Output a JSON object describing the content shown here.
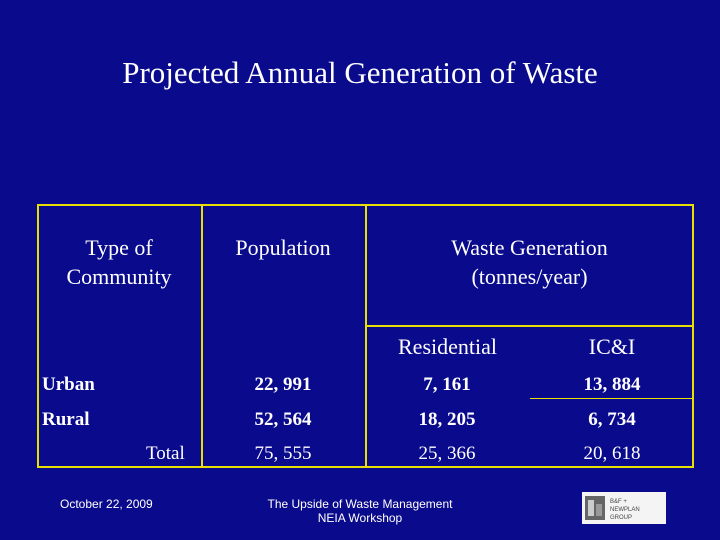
{
  "title": "Projected Annual Generation of Waste",
  "table": {
    "headers": {
      "type": "Type of Community",
      "type_line1": "Type of",
      "type_line2": "Community",
      "population": "Population",
      "waste_line1": "Waste Generation",
      "waste_line2": "(tonnes/year)",
      "residential": "Residential",
      "ici": "IC&I"
    },
    "rows": [
      {
        "label": "Urban",
        "population": "22, 991",
        "residential": "7, 161",
        "ici": "13, 884"
      },
      {
        "label": "Rural",
        "population": "52, 564",
        "residential": "18, 205",
        "ici": "6, 734"
      },
      {
        "label": "Total",
        "population": "75, 555",
        "residential": "25, 366",
        "ici": "20, 618"
      }
    ]
  },
  "footer": {
    "date": "October 22, 2009",
    "center_line1": "The Upside of Waste Management",
    "center_line2": "NEIA Workshop",
    "logo_text_line1": "B&F +",
    "logo_text_line2": "NEWPLAN",
    "logo_text_line3": "GROUP"
  },
  "colors": {
    "background": "#0a0a8c",
    "border": "#e8e000",
    "text": "#ffffff"
  }
}
